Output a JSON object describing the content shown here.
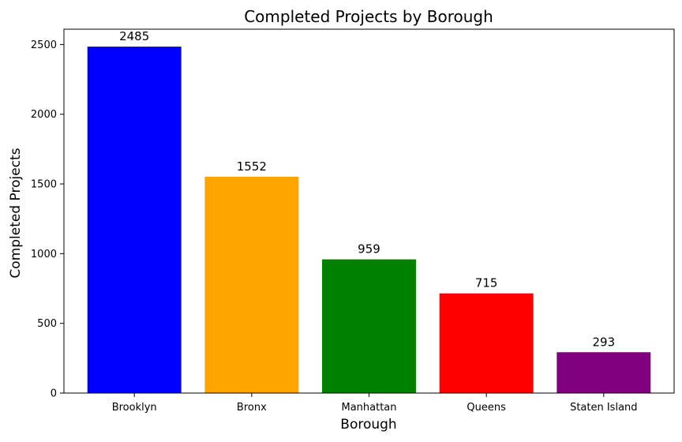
{
  "chart_data": {
    "type": "bar",
    "title": "Completed Projects by Borough",
    "xlabel": "Borough",
    "ylabel": "Completed Projects",
    "categories": [
      "Brooklyn",
      "Bronx",
      "Manhattan",
      "Queens",
      "Staten Island"
    ],
    "values": [
      2485,
      1552,
      959,
      715,
      293
    ],
    "colors": [
      "#0000ff",
      "#ffa500",
      "#008000",
      "#ff0000",
      "#800080"
    ],
    "ylim": [
      0,
      2610
    ],
    "yticks": [
      0,
      500,
      1000,
      1500,
      2000,
      2500
    ],
    "data_labels": true,
    "grid": false,
    "legend": "none"
  }
}
